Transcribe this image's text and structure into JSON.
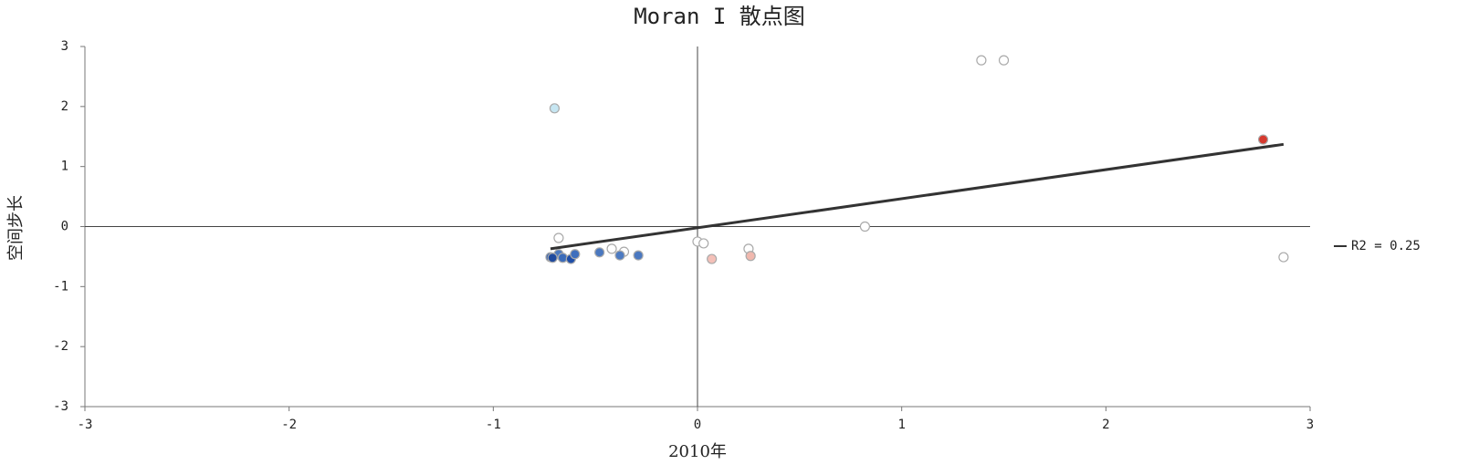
{
  "chart_data": {
    "type": "scatter",
    "title": "Moran I 散点图",
    "x_label": "2010年",
    "y_label": "空间步长",
    "x": [
      -0.7,
      1.39,
      1.5,
      2.77,
      2.87,
      0.82,
      -0.68,
      0.0,
      0.03,
      0.25,
      0.07,
      0.26,
      -0.42,
      -0.36,
      -0.72,
      -0.68,
      -0.66,
      -0.62,
      -0.6,
      -0.48,
      -0.38,
      -0.29,
      -0.71
    ],
    "values": [
      1.97,
      2.77,
      2.77,
      1.45,
      -0.51,
      0.0,
      -0.19,
      -0.25,
      -0.28,
      -0.37,
      -0.54,
      -0.49,
      -0.37,
      -0.42,
      -0.51,
      -0.46,
      -0.52,
      -0.54,
      -0.46,
      -0.43,
      -0.48,
      -0.48,
      -0.52
    ],
    "colors": [
      "#c6e6f2",
      "#ffffff",
      "#ffffff",
      "#d63a2f",
      "#ffffff",
      "#ffffff",
      "#ffffff",
      "#ffffff",
      "#ffffff",
      "#ffffff",
      "#f4c0b8",
      "#f0b8ae",
      "#ffffff",
      "#ffffff",
      "#2f5fb0",
      "#4a78c0",
      "#3c6cba",
      "#1f4ea8",
      "#3f6fbd",
      "#4a78c0",
      "#4d7bc2",
      "#4a78c0",
      "#1f4a9e"
    ],
    "marker_edge_color": "#aaaaaa",
    "trendline": {
      "label": "R2 = 0.25",
      "x": [
        -0.72,
        2.87
      ],
      "y": [
        -0.37,
        1.37
      ],
      "color": "#333333"
    },
    "xlim": [
      -3,
      3
    ],
    "xticks": [
      -3,
      -2,
      -1,
      0,
      1,
      2,
      3
    ],
    "ylim": [
      -3,
      3
    ],
    "yticks": [
      -3,
      -2,
      -1,
      0,
      1,
      2,
      3
    ],
    "grid": false,
    "legend": "right"
  }
}
